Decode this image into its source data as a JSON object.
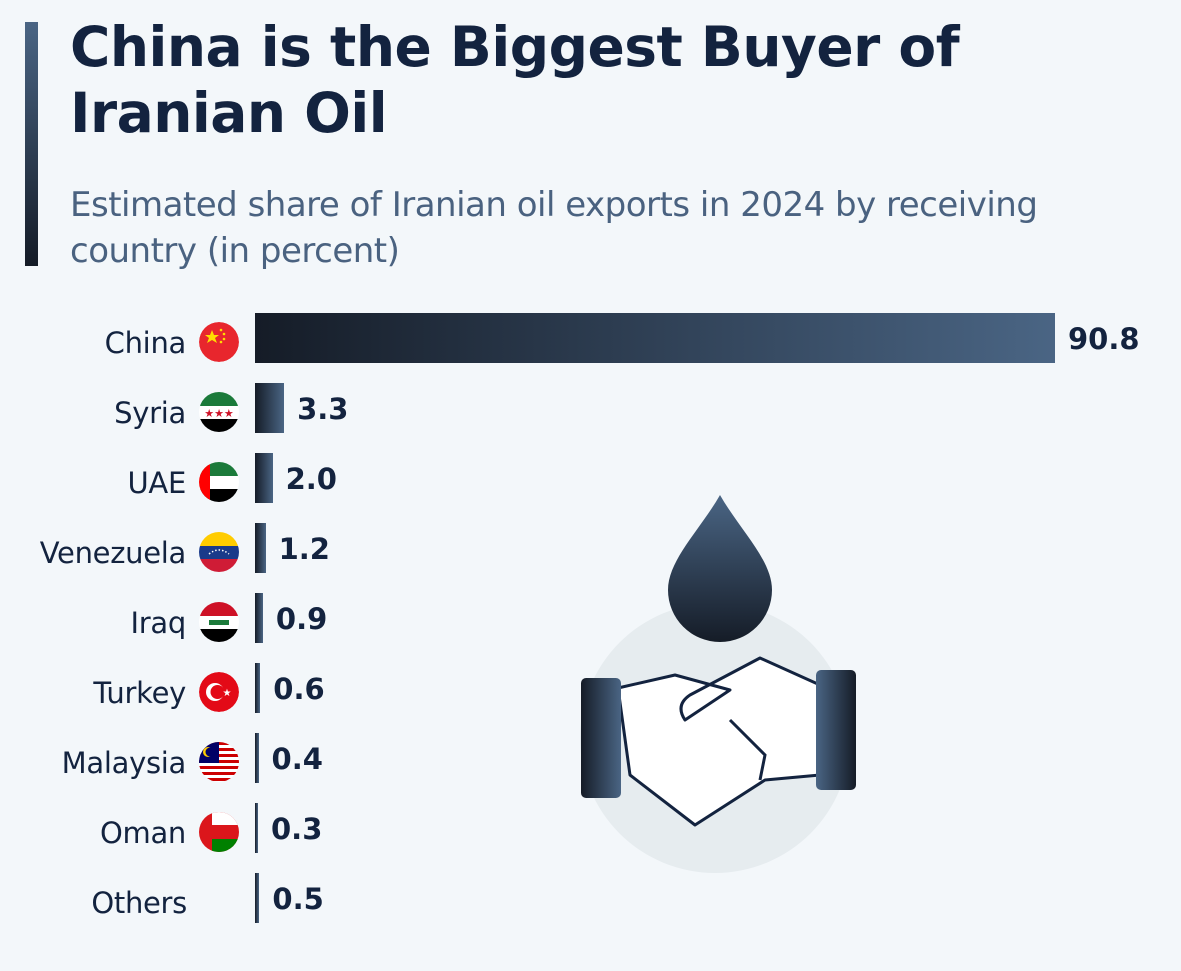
{
  "title": "China is the Biggest Buyer of Iranian Oil",
  "subtitle": "Estimated share of Iranian oil exports in 2024 by receiving country (in percent)",
  "colors": {
    "bar_start": "#151c27",
    "bar_end": "#4a6584",
    "text": "#13233f"
  },
  "chart_data": {
    "type": "bar",
    "orientation": "horizontal",
    "title": "China is the Biggest Buyer of Iranian Oil",
    "subtitle": "Estimated share of Iranian oil exports in 2024 by receiving country (in percent)",
    "categories": [
      "China",
      "Syria",
      "UAE",
      "Venezuela",
      "Iraq",
      "Turkey",
      "Malaysia",
      "Oman",
      "Others"
    ],
    "values": [
      90.8,
      3.3,
      2.0,
      1.2,
      0.9,
      0.6,
      0.4,
      0.3,
      0.5
    ],
    "labels": [
      "90.8",
      "3.3",
      "2.0",
      "1.2",
      "0.9",
      "0.6",
      "0.4",
      "0.3",
      "0.5"
    ],
    "flags": [
      "china",
      "syria",
      "uae",
      "venezuela",
      "iraq",
      "turkey",
      "malaysia",
      "oman",
      null
    ],
    "xlim": [
      0,
      90.8
    ],
    "grid": false,
    "legend": "none",
    "xlabel": "",
    "ylabel": ""
  }
}
